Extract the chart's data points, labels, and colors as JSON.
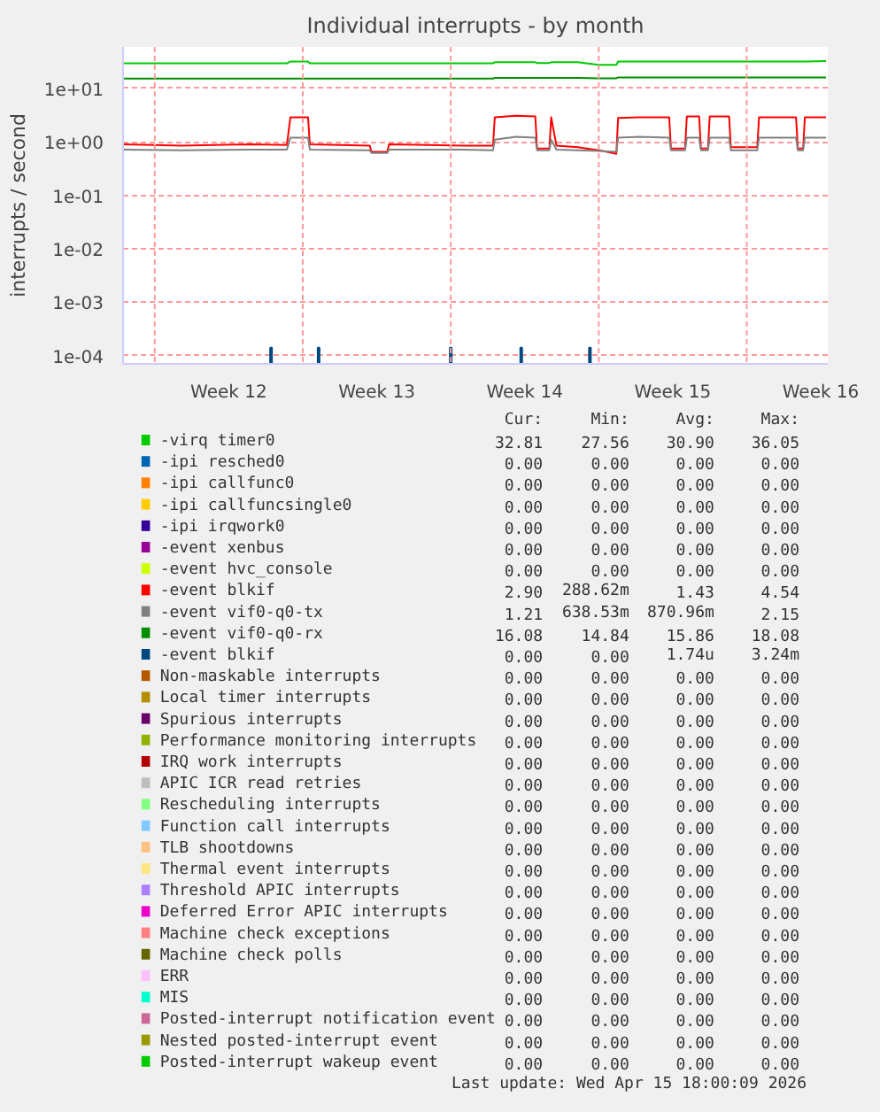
{
  "chart_data": {
    "type": "line",
    "title": "Individual interrupts - by month",
    "ylabel": "interrupts / second",
    "log": true,
    "grid": "y",
    "legend": "bottom",
    "ref_lines": [
      {
        "axis": "x",
        "value": "2026-03-16",
        "color": "#ff9a9a",
        "line_style": "dashed"
      },
      {
        "axis": "x",
        "value": "2026-03-23",
        "color": "#ff9a9a",
        "line_style": "dashed"
      },
      {
        "axis": "x",
        "value": "2026-03-30",
        "color": "#ff9a9a",
        "line_style": "dashed"
      },
      {
        "axis": "x",
        "value": "2026-04-06",
        "color": "#ff9a9a",
        "line_style": "dashed"
      },
      {
        "axis": "x",
        "value": "2026-04-13",
        "color": "#ff9a9a",
        "line_style": "dashed"
      }
    ],
    "xlim": [
      "2026-03-14T12:00",
      "2026-04-16T20:00"
    ],
    "xticks": [
      {
        "value": "2026-03-19T12:00",
        "label": "Week 12"
      },
      {
        "value": "2026-03-26T12:00",
        "label": "Week 13"
      },
      {
        "value": "2026-04-02T12:00",
        "label": "Week 14"
      },
      {
        "value": "2026-04-09T12:00",
        "label": "Week 15"
      },
      {
        "value": "2026-04-16T12:00",
        "label": "Week 16"
      }
    ],
    "ylim": [
      7e-05,
      60
    ],
    "yticks": [
      {
        "value": 0.0001,
        "label": "1e-04"
      },
      {
        "value": 0.001,
        "label": "1e-03"
      },
      {
        "value": 0.01,
        "label": "1e-02"
      },
      {
        "value": 0.1,
        "label": "1e-01"
      },
      {
        "value": 1,
        "label": "1e+00"
      },
      {
        "value": 10,
        "label": "1e+01"
      }
    ],
    "x": [
      "2026-03-14T12:00",
      "2026-03-17T06:00",
      "2026-03-20T14:00",
      "2026-03-22T06:00",
      "2026-03-22T10:00",
      "2026-03-23T06:00",
      "2026-03-23T08:00",
      "2026-03-26T04:00",
      "2026-03-26T06:00",
      "2026-03-27T00:00",
      "2026-03-27T02:00",
      "2026-03-30T14:00",
      "2026-04-01T00:00",
      "2026-04-01T02:00",
      "2026-04-02T02:00",
      "2026-04-03T00:00",
      "2026-04-03T02:00",
      "2026-04-03T16:00",
      "2026-04-03T18:00",
      "2026-04-04T00:00",
      "2026-04-05T00:00",
      "2026-04-06T00:00",
      "2026-04-06T20:00",
      "2026-04-06T22:00",
      "2026-04-07T22:00",
      "2026-04-09T08:00",
      "2026-04-09T10:00",
      "2026-04-10T02:00",
      "2026-04-10T04:00",
      "2026-04-10T18:00",
      "2026-04-10T20:00",
      "2026-04-11T04:00",
      "2026-04-11T06:00",
      "2026-04-12T04:00",
      "2026-04-12T06:00",
      "2026-04-13T12:00",
      "2026-04-13T14:00",
      "2026-04-15T08:00",
      "2026-04-15T10:00",
      "2026-04-15T16:00",
      "2026-04-15T18:00",
      "2026-04-16T18:00"
    ],
    "series": [
      {
        "name": "-virq timer0",
        "color": "#00cc00",
        "values": [
          29.5,
          29.5,
          29.5,
          29.5,
          32,
          32,
          29.5,
          29.5,
          29.5,
          29.5,
          29.5,
          29.5,
          29.5,
          31,
          31,
          31,
          30,
          30,
          31,
          31,
          31,
          27.6,
          27.6,
          32,
          32,
          32,
          32,
          32,
          32,
          32,
          32,
          32,
          32,
          32,
          32,
          32,
          32,
          32,
          32,
          32,
          32,
          32.5
        ]
      },
      {
        "name": "-ipi resched0",
        "color": "#0066b3",
        "values": [
          null,
          null,
          null,
          null,
          null,
          null,
          null,
          null,
          null,
          null,
          null,
          null,
          null,
          null,
          null,
          null,
          null,
          null,
          null,
          null,
          null,
          null,
          null,
          null,
          null,
          null,
          null,
          null,
          null,
          null,
          null,
          null,
          null,
          null,
          null,
          null,
          null,
          null,
          null,
          null,
          null,
          null
        ]
      },
      {
        "name": "-ipi callfunc0",
        "color": "#ff8000",
        "values": [
          null,
          null,
          null,
          null,
          null,
          null,
          null,
          null,
          null,
          null,
          null,
          null,
          null,
          null,
          null,
          null,
          null,
          null,
          null,
          null,
          null,
          null,
          null,
          null,
          null,
          null,
          null,
          null,
          null,
          null,
          null,
          null,
          null,
          null,
          null,
          null,
          null,
          null,
          null,
          null,
          null,
          null
        ]
      },
      {
        "name": "-ipi callfuncsingle0",
        "color": "#ffcc00",
        "values": [
          null,
          null,
          null,
          null,
          null,
          null,
          null,
          null,
          null,
          null,
          null,
          null,
          null,
          null,
          null,
          null,
          null,
          null,
          null,
          null,
          null,
          null,
          null,
          null,
          null,
          null,
          null,
          null,
          null,
          null,
          null,
          null,
          null,
          null,
          null,
          null,
          null,
          null,
          null,
          null,
          null,
          null
        ]
      },
      {
        "name": "-ipi irqwork0",
        "color": "#330099",
        "values": [
          null,
          null,
          null,
          null,
          null,
          null,
          null,
          null,
          null,
          null,
          null,
          null,
          null,
          null,
          null,
          null,
          null,
          null,
          null,
          null,
          null,
          null,
          null,
          null,
          null,
          null,
          null,
          null,
          null,
          null,
          null,
          null,
          null,
          null,
          null,
          null,
          null,
          null,
          null,
          null,
          null,
          null
        ]
      },
      {
        "name": "-event xenbus",
        "color": "#990099",
        "values": [
          null,
          null,
          null,
          null,
          null,
          null,
          null,
          null,
          null,
          null,
          null,
          null,
          null,
          null,
          null,
          null,
          null,
          null,
          null,
          null,
          null,
          null,
          null,
          null,
          null,
          null,
          null,
          null,
          null,
          null,
          null,
          null,
          null,
          null,
          null,
          null,
          null,
          null,
          null,
          null,
          null,
          null
        ]
      },
      {
        "name": "-event hvc_console",
        "color": "#ccff00",
        "values": [
          null,
          null,
          null,
          null,
          null,
          null,
          null,
          null,
          null,
          null,
          null,
          null,
          null,
          null,
          null,
          null,
          null,
          null,
          null,
          null,
          null,
          null,
          null,
          null,
          null,
          null,
          null,
          null,
          null,
          null,
          null,
          null,
          null,
          null,
          null,
          null,
          null,
          null,
          null,
          null,
          null,
          null
        ]
      },
      {
        "name": "-event blkif",
        "color": "#ff0000",
        "values": [
          0.9,
          0.85,
          0.9,
          0.88,
          2.9,
          2.9,
          0.9,
          0.85,
          0.65,
          0.65,
          0.9,
          0.85,
          0.85,
          2.9,
          3.1,
          3.0,
          0.75,
          0.75,
          2.9,
          0.85,
          0.8,
          0.7,
          0.6,
          2.8,
          2.9,
          2.9,
          0.75,
          0.75,
          3.0,
          3.0,
          0.75,
          0.75,
          3.0,
          3.0,
          0.8,
          0.8,
          2.9,
          2.9,
          0.75,
          0.75,
          2.9,
          2.9
        ]
      },
      {
        "name": "-event vif0-q0-tx",
        "color": "#808080",
        "values": [
          0.72,
          0.7,
          0.72,
          0.72,
          1.2,
          1.2,
          0.72,
          0.7,
          0.62,
          0.62,
          0.72,
          0.72,
          0.7,
          1.1,
          1.25,
          1.2,
          0.7,
          0.7,
          1.1,
          0.72,
          0.7,
          0.68,
          0.65,
          1.2,
          1.25,
          1.2,
          0.7,
          0.7,
          1.2,
          1.2,
          0.7,
          0.7,
          1.2,
          1.2,
          0.7,
          0.7,
          1.2,
          1.2,
          0.7,
          0.7,
          1.2,
          1.2
        ]
      },
      {
        "name": "-event vif0-q0-rx",
        "color": "#008f00",
        "values": [
          15.3,
          15.3,
          15.3,
          15.3,
          15.3,
          15.3,
          15.3,
          15.3,
          15.3,
          15.3,
          15.3,
          15.3,
          15.3,
          15.8,
          15.8,
          15.8,
          15.8,
          15.8,
          15.8,
          15.8,
          15.8,
          15.5,
          15.5,
          16.1,
          16.1,
          16.1,
          16.1,
          16.1,
          16.1,
          16.1,
          16.1,
          16.1,
          16.1,
          16.1,
          16.1,
          16.1,
          16.1,
          16.1,
          16.1,
          16.1,
          16.1,
          16.1
        ]
      },
      {
        "name": "-event blkif",
        "color": "#00487d",
        "type": "bar",
        "x": [
          "2026-03-21T12:00",
          "2026-03-23T18:00",
          "2026-03-30T00:00",
          "2026-04-02T08:00",
          "2026-04-05T14:00"
        ],
        "values": [
          0.00014,
          0.00014,
          0.00014,
          0.00014,
          0.00014
        ]
      },
      {
        "name": "Non-maskable interrupts",
        "color": "#b35a00",
        "values": [
          null,
          null,
          null,
          null,
          null,
          null,
          null,
          null,
          null,
          null,
          null,
          null,
          null,
          null,
          null,
          null,
          null,
          null,
          null,
          null,
          null,
          null,
          null,
          null,
          null,
          null,
          null,
          null,
          null,
          null,
          null,
          null,
          null,
          null,
          null,
          null,
          null,
          null,
          null,
          null,
          null,
          null
        ]
      },
      {
        "name": "Local timer interrupts",
        "color": "#b38f00",
        "values": [
          null,
          null,
          null,
          null,
          null,
          null,
          null,
          null,
          null,
          null,
          null,
          null,
          null,
          null,
          null,
          null,
          null,
          null,
          null,
          null,
          null,
          null,
          null,
          null,
          null,
          null,
          null,
          null,
          null,
          null,
          null,
          null,
          null,
          null,
          null,
          null,
          null,
          null,
          null,
          null,
          null,
          null
        ]
      },
      {
        "name": "Spurious interrupts",
        "color": "#6b006b",
        "values": [
          null,
          null,
          null,
          null,
          null,
          null,
          null,
          null,
          null,
          null,
          null,
          null,
          null,
          null,
          null,
          null,
          null,
          null,
          null,
          null,
          null,
          null,
          null,
          null,
          null,
          null,
          null,
          null,
          null,
          null,
          null,
          null,
          null,
          null,
          null,
          null,
          null,
          null,
          null,
          null,
          null,
          null
        ]
      },
      {
        "name": "Performance monitoring interrupts",
        "color": "#8fb300",
        "values": [
          null,
          null,
          null,
          null,
          null,
          null,
          null,
          null,
          null,
          null,
          null,
          null,
          null,
          null,
          null,
          null,
          null,
          null,
          null,
          null,
          null,
          null,
          null,
          null,
          null,
          null,
          null,
          null,
          null,
          null,
          null,
          null,
          null,
          null,
          null,
          null,
          null,
          null,
          null,
          null,
          null,
          null
        ]
      },
      {
        "name": "IRQ work interrupts",
        "color": "#b30000",
        "values": [
          null,
          null,
          null,
          null,
          null,
          null,
          null,
          null,
          null,
          null,
          null,
          null,
          null,
          null,
          null,
          null,
          null,
          null,
          null,
          null,
          null,
          null,
          null,
          null,
          null,
          null,
          null,
          null,
          null,
          null,
          null,
          null,
          null,
          null,
          null,
          null,
          null,
          null,
          null,
          null,
          null,
          null
        ]
      },
      {
        "name": "APIC ICR read retries",
        "color": "#bebebe",
        "values": [
          null,
          null,
          null,
          null,
          null,
          null,
          null,
          null,
          null,
          null,
          null,
          null,
          null,
          null,
          null,
          null,
          null,
          null,
          null,
          null,
          null,
          null,
          null,
          null,
          null,
          null,
          null,
          null,
          null,
          null,
          null,
          null,
          null,
          null,
          null,
          null,
          null,
          null,
          null,
          null,
          null,
          null
        ]
      },
      {
        "name": "Rescheduling interrupts",
        "color": "#80ff80",
        "values": [
          null,
          null,
          null,
          null,
          null,
          null,
          null,
          null,
          null,
          null,
          null,
          null,
          null,
          null,
          null,
          null,
          null,
          null,
          null,
          null,
          null,
          null,
          null,
          null,
          null,
          null,
          null,
          null,
          null,
          null,
          null,
          null,
          null,
          null,
          null,
          null,
          null,
          null,
          null,
          null,
          null,
          null
        ]
      },
      {
        "name": "Function call interrupts",
        "color": "#80c9ff",
        "values": [
          null,
          null,
          null,
          null,
          null,
          null,
          null,
          null,
          null,
          null,
          null,
          null,
          null,
          null,
          null,
          null,
          null,
          null,
          null,
          null,
          null,
          null,
          null,
          null,
          null,
          null,
          null,
          null,
          null,
          null,
          null,
          null,
          null,
          null,
          null,
          null,
          null,
          null,
          null,
          null,
          null,
          null
        ]
      },
      {
        "name": "TLB shootdowns",
        "color": "#ffc080",
        "values": [
          null,
          null,
          null,
          null,
          null,
          null,
          null,
          null,
          null,
          null,
          null,
          null,
          null,
          null,
          null,
          null,
          null,
          null,
          null,
          null,
          null,
          null,
          null,
          null,
          null,
          null,
          null,
          null,
          null,
          null,
          null,
          null,
          null,
          null,
          null,
          null,
          null,
          null,
          null,
          null,
          null,
          null
        ]
      },
      {
        "name": "Thermal event interrupts",
        "color": "#ffe680",
        "values": [
          null,
          null,
          null,
          null,
          null,
          null,
          null,
          null,
          null,
          null,
          null,
          null,
          null,
          null,
          null,
          null,
          null,
          null,
          null,
          null,
          null,
          null,
          null,
          null,
          null,
          null,
          null,
          null,
          null,
          null,
          null,
          null,
          null,
          null,
          null,
          null,
          null,
          null,
          null,
          null,
          null,
          null
        ]
      },
      {
        "name": "Threshold APIC interrupts",
        "color": "#aa80ff",
        "values": [
          null,
          null,
          null,
          null,
          null,
          null,
          null,
          null,
          null,
          null,
          null,
          null,
          null,
          null,
          null,
          null,
          null,
          null,
          null,
          null,
          null,
          null,
          null,
          null,
          null,
          null,
          null,
          null,
          null,
          null,
          null,
          null,
          null,
          null,
          null,
          null,
          null,
          null,
          null,
          null,
          null,
          null
        ]
      },
      {
        "name": "Deferred Error APIC interrupts",
        "color": "#ee00cc",
        "values": [
          null,
          null,
          null,
          null,
          null,
          null,
          null,
          null,
          null,
          null,
          null,
          null,
          null,
          null,
          null,
          null,
          null,
          null,
          null,
          null,
          null,
          null,
          null,
          null,
          null,
          null,
          null,
          null,
          null,
          null,
          null,
          null,
          null,
          null,
          null,
          null,
          null,
          null,
          null,
          null,
          null,
          null
        ]
      },
      {
        "name": "Machine check exceptions",
        "color": "#ff8080",
        "values": [
          null,
          null,
          null,
          null,
          null,
          null,
          null,
          null,
          null,
          null,
          null,
          null,
          null,
          null,
          null,
          null,
          null,
          null,
          null,
          null,
          null,
          null,
          null,
          null,
          null,
          null,
          null,
          null,
          null,
          null,
          null,
          null,
          null,
          null,
          null,
          null,
          null,
          null,
          null,
          null,
          null,
          null
        ]
      },
      {
        "name": "Machine check polls",
        "color": "#666600",
        "values": [
          null,
          null,
          null,
          null,
          null,
          null,
          null,
          null,
          null,
          null,
          null,
          null,
          null,
          null,
          null,
          null,
          null,
          null,
          null,
          null,
          null,
          null,
          null,
          null,
          null,
          null,
          null,
          null,
          null,
          null,
          null,
          null,
          null,
          null,
          null,
          null,
          null,
          null,
          null,
          null,
          null,
          null
        ]
      },
      {
        "name": "ERR",
        "color": "#ffbfff",
        "values": [
          null,
          null,
          null,
          null,
          null,
          null,
          null,
          null,
          null,
          null,
          null,
          null,
          null,
          null,
          null,
          null,
          null,
          null,
          null,
          null,
          null,
          null,
          null,
          null,
          null,
          null,
          null,
          null,
          null,
          null,
          null,
          null,
          null,
          null,
          null,
          null,
          null,
          null,
          null,
          null,
          null,
          null
        ]
      },
      {
        "name": "MIS",
        "color": "#00ffcc",
        "values": [
          null,
          null,
          null,
          null,
          null,
          null,
          null,
          null,
          null,
          null,
          null,
          null,
          null,
          null,
          null,
          null,
          null,
          null,
          null,
          null,
          null,
          null,
          null,
          null,
          null,
          null,
          null,
          null,
          null,
          null,
          null,
          null,
          null,
          null,
          null,
          null,
          null,
          null,
          null,
          null,
          null,
          null
        ]
      },
      {
        "name": "Posted-interrupt notification event",
        "color": "#cc6699",
        "values": [
          null,
          null,
          null,
          null,
          null,
          null,
          null,
          null,
          null,
          null,
          null,
          null,
          null,
          null,
          null,
          null,
          null,
          null,
          null,
          null,
          null,
          null,
          null,
          null,
          null,
          null,
          null,
          null,
          null,
          null,
          null,
          null,
          null,
          null,
          null,
          null,
          null,
          null,
          null,
          null,
          null,
          null
        ]
      },
      {
        "name": "Nested posted-interrupt event",
        "color": "#999900",
        "values": [
          null,
          null,
          null,
          null,
          null,
          null,
          null,
          null,
          null,
          null,
          null,
          null,
          null,
          null,
          null,
          null,
          null,
          null,
          null,
          null,
          null,
          null,
          null,
          null,
          null,
          null,
          null,
          null,
          null,
          null,
          null,
          null,
          null,
          null,
          null,
          null,
          null,
          null,
          null,
          null,
          null,
          null
        ]
      },
      {
        "name": "Posted-interrupt wakeup event",
        "color": "#00cc00",
        "values": [
          null,
          null,
          null,
          null,
          null,
          null,
          null,
          null,
          null,
          null,
          null,
          null,
          null,
          null,
          null,
          null,
          null,
          null,
          null,
          null,
          null,
          null,
          null,
          null,
          null,
          null,
          null,
          null,
          null,
          null,
          null,
          null,
          null,
          null,
          null,
          null,
          null,
          null,
          null,
          null,
          null,
          null
        ]
      }
    ],
    "annotations": [
      "Cur:",
      "Min:",
      "Avg:",
      "Max:",
      "32.81",
      "27.56",
      "30.90",
      "36.05",
      "0.00",
      "0.00",
      "0.00",
      "0.00",
      "0.00",
      "0.00",
      "0.00",
      "0.00",
      "0.00",
      "0.00",
      "0.00",
      "0.00",
      "0.00",
      "0.00",
      "0.00",
      "0.00",
      "0.00",
      "0.00",
      "0.00",
      "0.00",
      "0.00",
      "0.00",
      "0.00",
      "0.00",
      "2.90",
      "288.62m",
      "1.43",
      "4.54",
      "1.21",
      "638.53m",
      "870.96m",
      "2.15",
      "16.08",
      "14.84",
      "15.86",
      "18.08",
      "0.00",
      "0.00",
      "1.74u",
      "3.24m",
      "0.00",
      "0.00",
      "0.00",
      "0.00",
      "0.00",
      "0.00",
      "0.00",
      "0.00",
      "0.00",
      "0.00",
      "0.00",
      "0.00",
      "0.00",
      "0.00",
      "0.00",
      "0.00",
      "0.00",
      "0.00",
      "0.00",
      "0.00",
      "0.00",
      "0.00",
      "0.00",
      "0.00",
      "0.00",
      "0.00",
      "0.00",
      "0.00",
      "0.00",
      "0.00",
      "0.00",
      "0.00",
      "0.00",
      "0.00",
      "0.00",
      "0.00",
      "0.00",
      "0.00",
      "0.00",
      "0.00",
      "0.00",
      "0.00",
      "0.00",
      "0.00",
      "0.00",
      "0.00",
      "0.00",
      "0.00",
      "0.00",
      "0.00",
      "0.00",
      "0.00",
      "0.00",
      "0.00",
      "0.00",
      "0.00",
      "0.00",
      "0.00",
      "0.00",
      "0.00",
      "0.00",
      "0.00",
      "0.00",
      "0.00",
      "0.00",
      "0.00",
      "0.00",
      "0.00",
      "0.00",
      "0.00",
      "0.00",
      "0.00",
      "0.00",
      "0.00",
      "0.00",
      "0.00",
      "Last update: Wed Apr 15 18:00:09 2026"
    ]
  }
}
